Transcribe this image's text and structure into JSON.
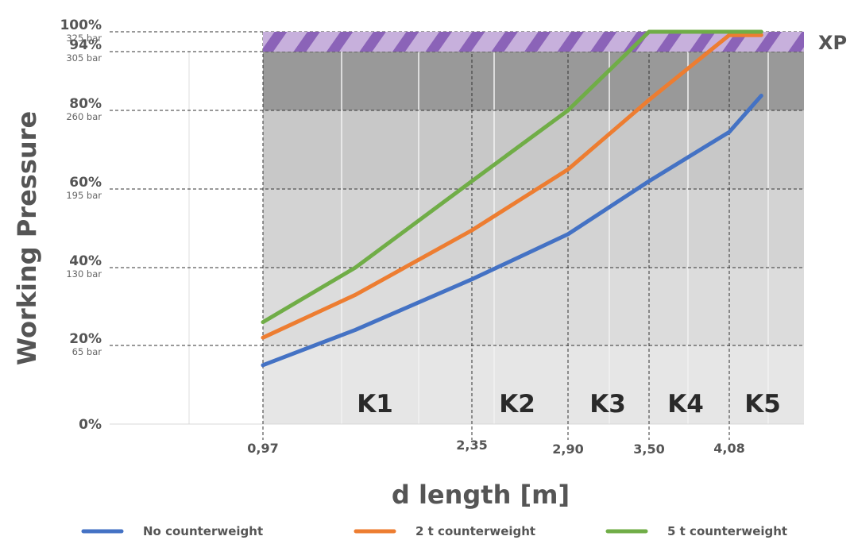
{
  "chart_data": {
    "type": "line",
    "ylabel": "Working Pressure",
    "xlabel": "d length [m]",
    "y_ticks": [
      {
        "pct": 0,
        "pct_label": "0%",
        "bar_label": ""
      },
      {
        "pct": 20,
        "pct_label": "20%",
        "bar_label": "65 bar"
      },
      {
        "pct": 40,
        "pct_label": "40%",
        "bar_label": "130 bar"
      },
      {
        "pct": 60,
        "pct_label": "60%",
        "bar_label": "195 bar"
      },
      {
        "pct": 80,
        "pct_label": "80%",
        "bar_label": "260 bar"
      },
      {
        "pct": 94,
        "pct_label": "94%",
        "bar_label": "305 bar"
      },
      {
        "pct": 100,
        "pct_label": "100%",
        "bar_label": "325 bar"
      }
    ],
    "x_ticks": [
      {
        "value": 0.97,
        "label": "0,97"
      },
      {
        "value": 2.35,
        "label": "2,35"
      },
      {
        "value": 2.9,
        "label": "2,90"
      },
      {
        "value": 3.5,
        "label": "3,50"
      },
      {
        "value": 4.08,
        "label": "4,08"
      }
    ],
    "xlim": [
      0.0,
      5.0
    ],
    "ylim": [
      0,
      100
    ],
    "zones": [
      {
        "label": "K1",
        "from": 0.97,
        "to": 2.35
      },
      {
        "label": "K2",
        "from": 2.35,
        "to": 2.9
      },
      {
        "label": "K3",
        "from": 2.9,
        "to": 3.5
      },
      {
        "label": "K4",
        "from": 3.5,
        "to": 4.08
      },
      {
        "label": "K5",
        "from": 4.08,
        "to": 4.64
      }
    ],
    "xp_band": {
      "label": "XP",
      "from_pct": 94,
      "to_pct": 100
    },
    "series": [
      {
        "name": "No counterweight",
        "color": "#4472c4",
        "points": [
          [
            0.97,
            15
          ],
          [
            1.58,
            24
          ],
          [
            2.35,
            37
          ],
          [
            2.9,
            48.5
          ],
          [
            3.5,
            62
          ],
          [
            4.08,
            74.5
          ],
          [
            4.32,
            83.5
          ]
        ]
      },
      {
        "name": "2 t counterweight",
        "color": "#ed7d31",
        "points": [
          [
            0.97,
            22
          ],
          [
            1.58,
            33
          ],
          [
            2.35,
            49.5
          ],
          [
            2.9,
            65
          ],
          [
            3.5,
            82.5
          ],
          [
            4.08,
            99
          ],
          [
            4.32,
            99
          ]
        ]
      },
      {
        "name": "5 t counterweight",
        "color": "#70ad47",
        "points": [
          [
            0.97,
            26
          ],
          [
            1.58,
            40
          ],
          [
            2.35,
            62
          ],
          [
            2.9,
            80
          ],
          [
            3.5,
            100
          ],
          [
            4.08,
            100
          ],
          [
            4.32,
            100
          ]
        ]
      }
    ]
  }
}
